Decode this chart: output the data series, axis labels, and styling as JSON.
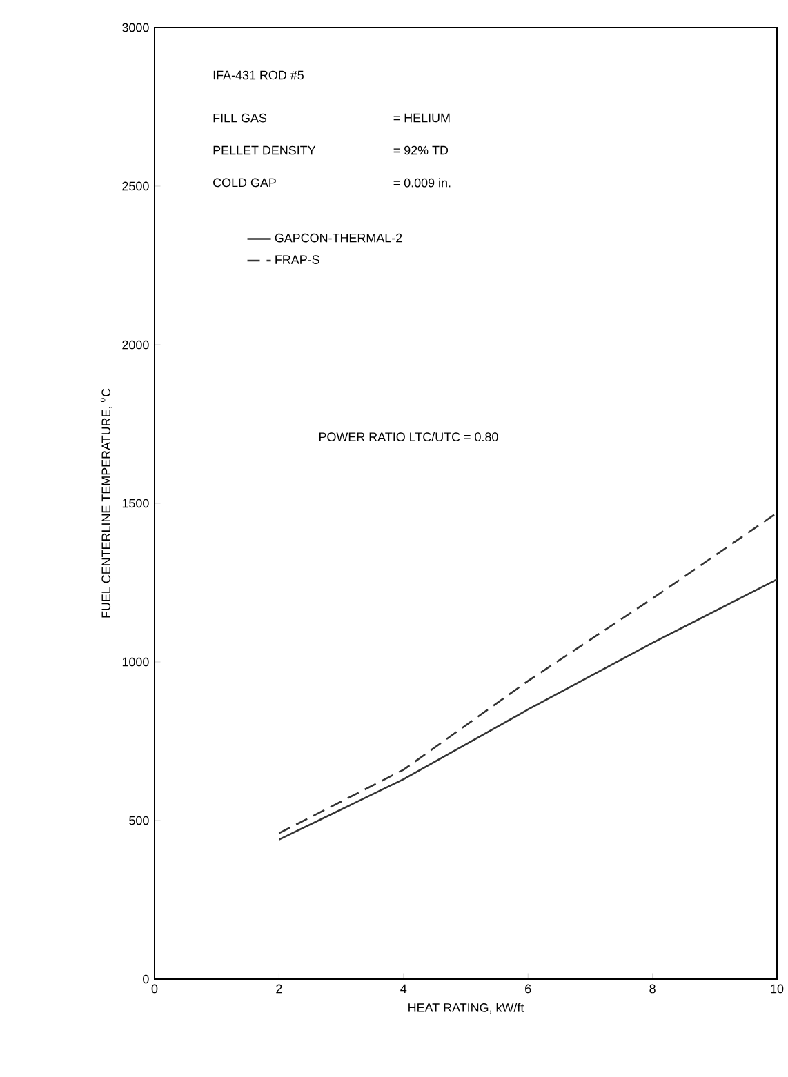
{
  "chart_data": {
    "type": "line",
    "xlabel": "HEAT RATING, kW/ft",
    "ylabel": "FUEL CENTERLINE TEMPERATURE, $^{o}$C",
    "xlim": [
      0,
      10
    ],
    "ylim": [
      0,
      3000
    ],
    "xticks": [
      0,
      2,
      4,
      6,
      8,
      10
    ],
    "yticks": [
      0,
      500,
      1000,
      1500,
      2000,
      2500,
      3000
    ],
    "x": [
      2,
      4,
      6,
      8,
      10
    ],
    "series": [
      {
        "name": "GAPCON-THERMAL-2",
        "color": "#333333",
        "line_style": "solid",
        "values": [
          440,
          630,
          850,
          1060,
          1260
        ]
      },
      {
        "name": "FRAP-S",
        "color": "#333333",
        "line_style": "dashed",
        "values": [
          460,
          660,
          940,
          1200,
          1470
        ]
      }
    ],
    "legend": "top left",
    "grid": false,
    "marker": "none",
    "annotations": [
      "IFA-431   ROD #5",
      "FILL GAS",
      "= HELIUM",
      "PELLET DENSITY",
      "= 92% TD",
      "COLD GAP",
      "= 0.009 in.",
      "POWER RATIO LTC/UTC = 0.80"
    ]
  }
}
